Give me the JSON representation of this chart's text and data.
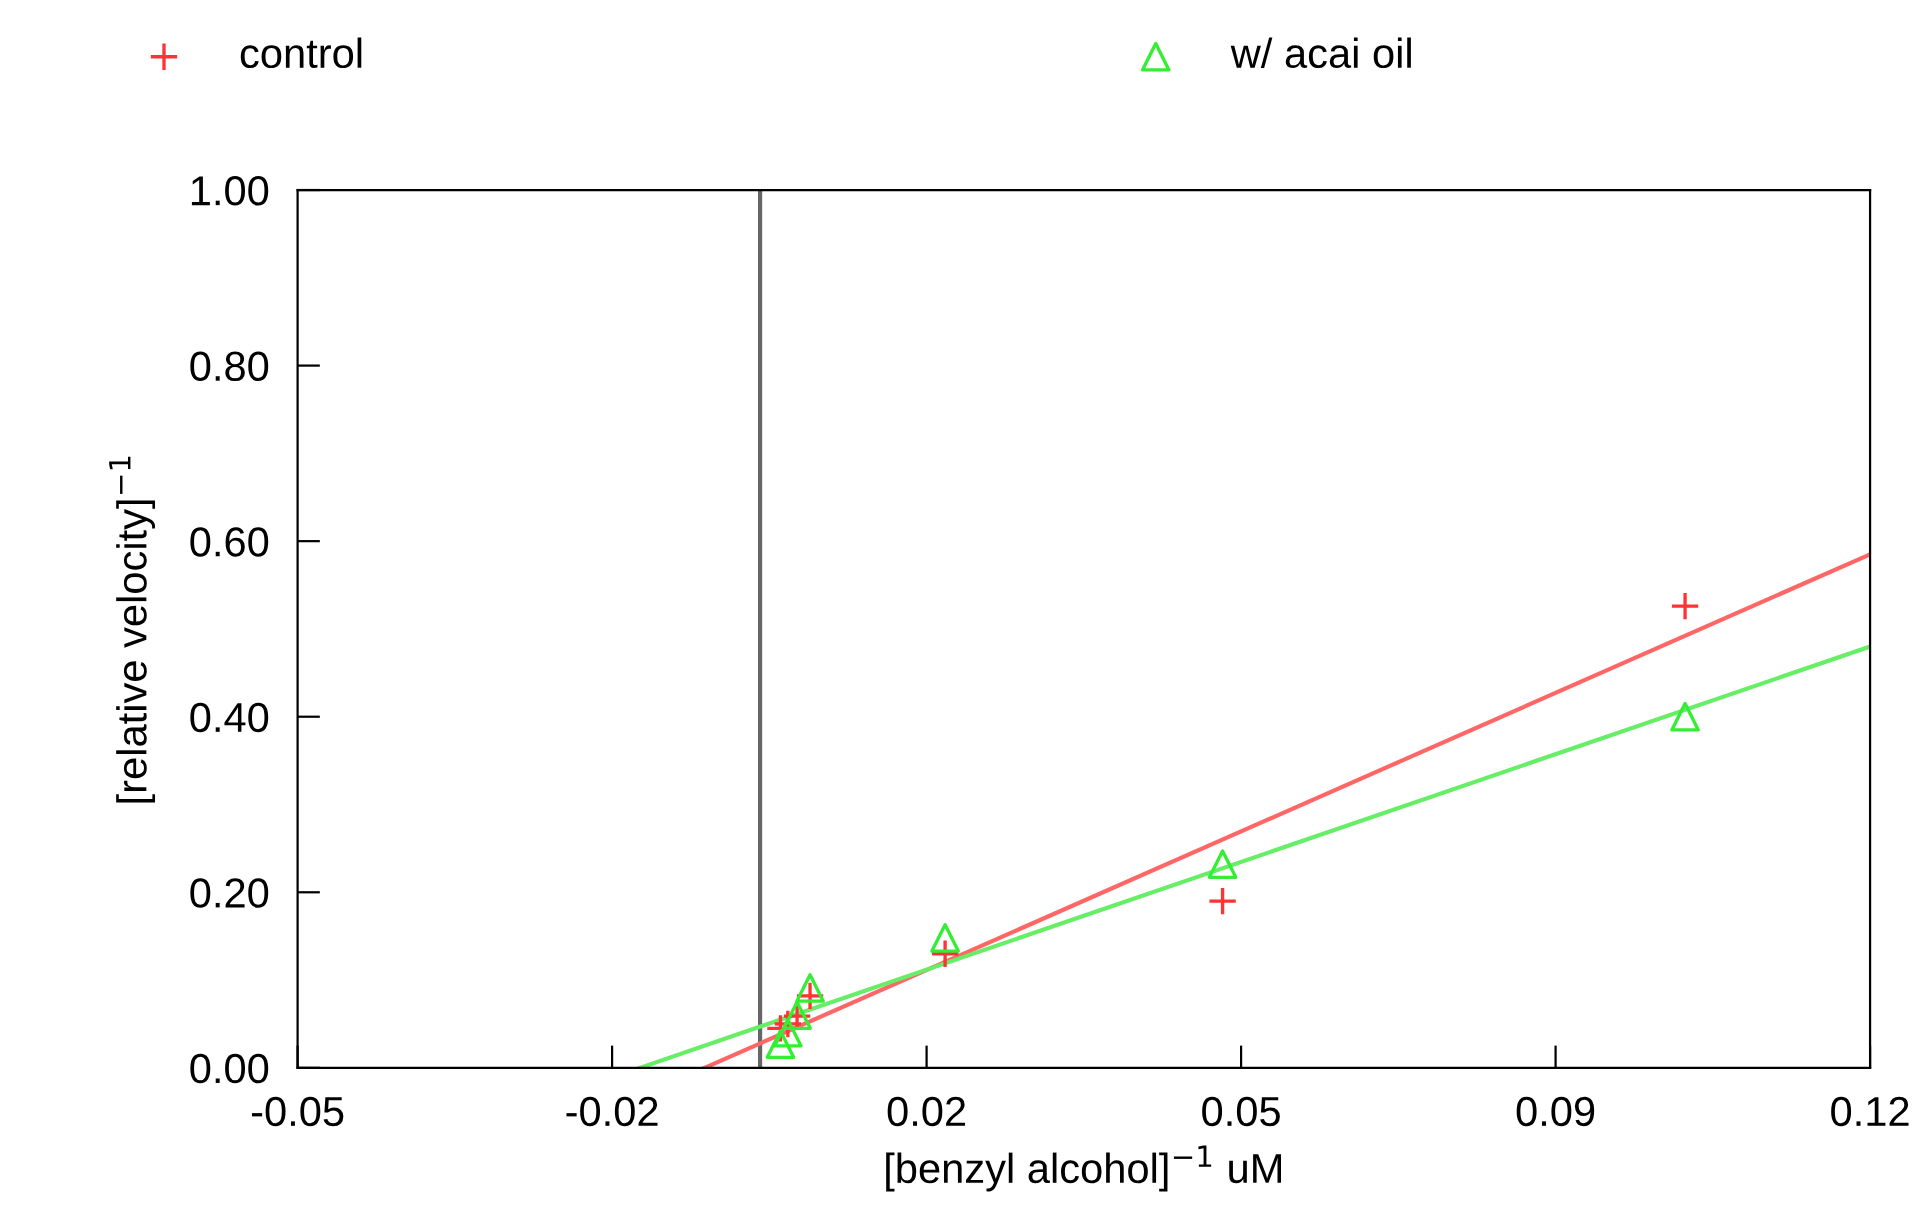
{
  "chart_data": {
    "type": "scatter",
    "xlabel": "[benzyl alcohol]$^{−1}$ uM",
    "ylabel": "[relative velocity]$^{−1}$",
    "xlim": [
      -0.05,
      0.12
    ],
    "ylim": [
      0,
      1
    ],
    "xticks": [
      {
        "value": -0.05,
        "label": "-0.05"
      },
      {
        "value": -0.016,
        "label": "-0.02"
      },
      {
        "value": 0.018,
        "label": "0.02"
      },
      {
        "value": 0.052,
        "label": "0.05"
      },
      {
        "value": 0.086,
        "label": "0.09"
      },
      {
        "value": 0.12,
        "label": "0.12"
      }
    ],
    "yticks": [
      {
        "value": 0,
        "label": "0.00"
      },
      {
        "value": 0.2,
        "label": "0.20"
      },
      {
        "value": 0.4,
        "label": "0.40"
      },
      {
        "value": 0.6,
        "label": "0.60"
      },
      {
        "value": 0.8,
        "label": "0.80"
      },
      {
        "value": 1,
        "label": "1.00"
      }
    ],
    "grid": false,
    "legend": "top",
    "series": [
      {
        "name": "control",
        "color": "#ff3333",
        "marker": "cross",
        "x": [
          0.0022,
          0.003,
          0.004,
          0.0054,
          0.02,
          0.05,
          0.1
        ],
        "values": [
          0.045,
          0.05,
          0.059,
          0.082,
          0.13,
          0.19,
          0.526
        ]
      },
      {
        "name": "w/ acai oil",
        "color": "#33ee33",
        "marker": "triangle",
        "x": [
          0.0022,
          0.003,
          0.004,
          0.0054,
          0.02,
          0.05,
          0.1
        ],
        "values": [
          0.027,
          0.04,
          0.06,
          0.091,
          0.148,
          0.232,
          0.4
        ]
      },
      {
        "type": "line",
        "color": "#ff6666",
        "x": [
          -0.006,
          0.12
        ],
        "values": [
          0,
          0.585
        ]
      },
      {
        "type": "line",
        "color": "#66ee66",
        "x": [
          -0.013,
          0.12
        ],
        "values": [
          0,
          0.48
        ]
      }
    ],
    "ref_lines": [
      {
        "axis": "x",
        "value": 0,
        "color": "#666666"
      }
    ]
  }
}
